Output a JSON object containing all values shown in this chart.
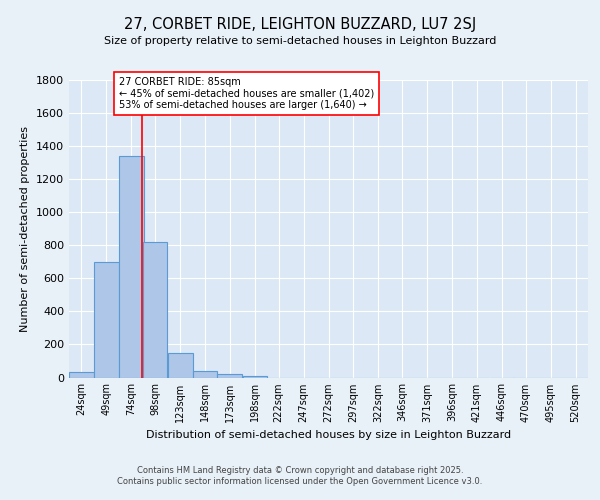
{
  "title": "27, CORBET RIDE, LEIGHTON BUZZARD, LU7 2SJ",
  "subtitle": "Size of property relative to semi-detached houses in Leighton Buzzard",
  "xlabel": "Distribution of semi-detached houses by size in Leighton Buzzard",
  "ylabel": "Number of semi-detached properties",
  "footer_line1": "Contains HM Land Registry data © Crown copyright and database right 2025.",
  "footer_line2": "Contains public sector information licensed under the Open Government Licence v3.0.",
  "bin_labels": [
    "24sqm",
    "49sqm",
    "74sqm",
    "98sqm",
    "123sqm",
    "148sqm",
    "173sqm",
    "198sqm",
    "222sqm",
    "247sqm",
    "272sqm",
    "297sqm",
    "322sqm",
    "346sqm",
    "371sqm",
    "396sqm",
    "421sqm",
    "446sqm",
    "470sqm",
    "495sqm",
    "520sqm"
  ],
  "bar_values": [
    35,
    700,
    1340,
    820,
    150,
    38,
    22,
    12,
    0,
    0,
    0,
    0,
    0,
    0,
    0,
    0,
    0,
    0,
    0,
    0,
    0
  ],
  "bar_color": "#aec6e8",
  "bar_edgecolor": "#5b9bd5",
  "bar_linewidth": 0.8,
  "vline_x": 85,
  "vline_color": "red",
  "vline_linewidth": 1.2,
  "annotation_text": "27 CORBET RIDE: 85sqm\n← 45% of semi-detached houses are smaller (1,402)\n53% of semi-detached houses are larger (1,640) →",
  "annotation_box_color": "white",
  "annotation_box_edgecolor": "red",
  "ylim": [
    0,
    1800
  ],
  "yticks": [
    0,
    200,
    400,
    600,
    800,
    1000,
    1200,
    1400,
    1600,
    1800
  ],
  "background_color": "#e8f0f8",
  "plot_bg_color": "#dce8f5",
  "grid_color": "white",
  "bin_edges": [
    11.5,
    36.5,
    61.5,
    86.5,
    110.5,
    135.5,
    160.5,
    185.5,
    209.5,
    234.5,
    259.5,
    284.5,
    309.5,
    333.5,
    358.5,
    383.5,
    408.5,
    433.5,
    457.5,
    482.5,
    507.5,
    532.5
  ],
  "bin_centers": [
    24,
    49,
    74,
    98,
    123,
    148,
    173,
    198,
    222,
    247,
    272,
    297,
    322,
    346,
    371,
    396,
    421,
    446,
    470,
    495,
    520
  ]
}
